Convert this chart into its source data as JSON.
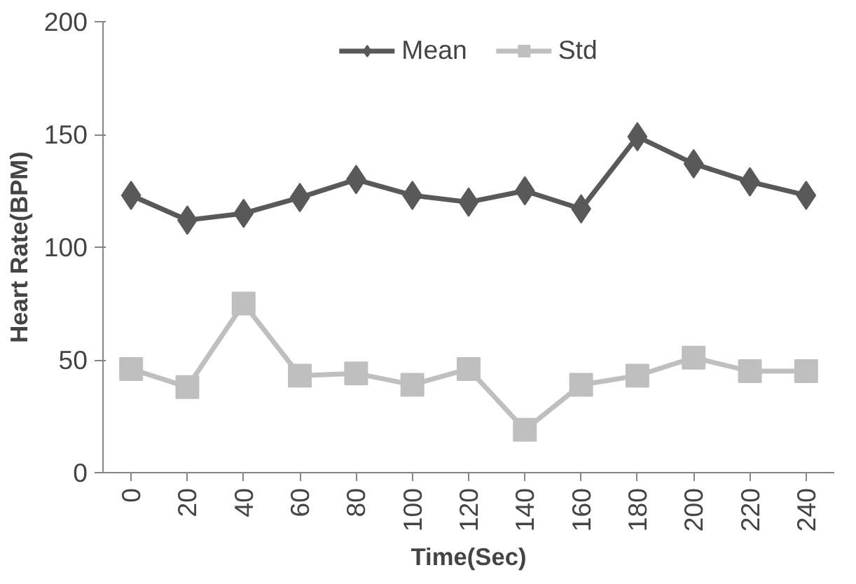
{
  "chart_data": {
    "type": "line",
    "xlabel": "Time(Sec)",
    "ylabel": "Heart Rate(BPM)",
    "categories": [
      "0",
      "20",
      "40",
      "60",
      "80",
      "100",
      "120",
      "140",
      "160",
      "180",
      "200",
      "220",
      "240"
    ],
    "series": [
      {
        "name": "Mean",
        "color": "#595959",
        "marker": "diamond",
        "values": [
          123,
          112,
          115,
          122,
          130,
          123,
          120,
          125,
          117,
          149,
          137,
          129,
          123
        ]
      },
      {
        "name": "Std",
        "color": "#bfbfbf",
        "marker": "square",
        "values": [
          46,
          38,
          75,
          43,
          44,
          39,
          46,
          19,
          39,
          43,
          51,
          45,
          45
        ]
      }
    ],
    "ylim": [
      0,
      200
    ],
    "yticks": [
      0,
      50,
      100,
      150,
      200
    ],
    "grid": false,
    "legend": "top"
  }
}
